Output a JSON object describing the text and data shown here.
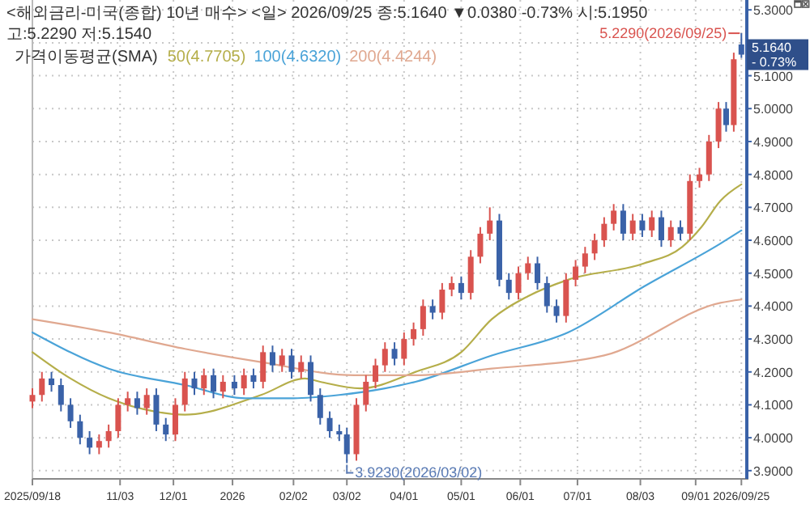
{
  "chart_data": {
    "type": "candlestick",
    "title": "<해외금리-미국(종합) 10년 매수> <일> 2026/09/25 종:5.1640 ▼0.0380 -0.73% 시:5.1950 고:5.2290 저:5.1540",
    "legend_title": "가격이동평균(SMA)",
    "legend": "top left",
    "grid": true,
    "x": [
      "2025-09-18",
      "2025-09-23",
      "2025-09-28",
      "2025-10-03",
      "2025-10-08",
      "2025-10-13",
      "2025-10-18",
      "2025-10-23",
      "2025-10-28",
      "2025-11-02",
      "2025-11-07",
      "2025-11-12",
      "2025-11-17",
      "2025-11-22",
      "2025-11-27",
      "2025-12-02",
      "2025-12-07",
      "2025-12-12",
      "2025-12-17",
      "2025-12-22",
      "2025-12-27",
      "2026-01-02",
      "2026-01-07",
      "2026-01-12",
      "2026-01-17",
      "2026-01-22",
      "2026-01-27",
      "2026-02-01",
      "2026-02-06",
      "2026-02-11",
      "2026-02-16",
      "2026-02-21",
      "2026-02-26",
      "2026-03-02",
      "2026-03-07",
      "2026-03-12",
      "2026-03-17",
      "2026-03-22",
      "2026-03-27",
      "2026-04-01",
      "2026-04-06",
      "2026-04-11",
      "2026-04-16",
      "2026-04-21",
      "2026-04-26",
      "2026-05-01",
      "2026-05-06",
      "2026-05-11",
      "2026-05-16",
      "2026-05-21",
      "2026-05-26",
      "2026-05-31",
      "2026-06-05",
      "2026-06-10",
      "2026-06-15",
      "2026-06-20",
      "2026-06-25",
      "2026-06-30",
      "2026-07-05",
      "2026-07-10",
      "2026-07-15",
      "2026-07-20",
      "2026-07-25",
      "2026-07-30",
      "2026-08-04",
      "2026-08-09",
      "2026-08-14",
      "2026-08-19",
      "2026-08-24",
      "2026-08-29",
      "2026-09-03",
      "2026-09-08",
      "2026-09-13",
      "2026-09-17",
      "2026-09-21",
      "2026-09-25"
    ],
    "ohlc": [
      [
        4.11,
        4.15,
        4.09,
        4.13
      ],
      [
        4.13,
        4.2,
        4.11,
        4.18
      ],
      [
        4.18,
        4.2,
        4.14,
        4.16
      ],
      [
        4.16,
        4.18,
        4.08,
        4.1
      ],
      [
        4.1,
        4.12,
        4.03,
        4.05
      ],
      [
        4.05,
        4.07,
        3.98,
        4.0
      ],
      [
        4.0,
        4.02,
        3.95,
        3.97
      ],
      [
        3.97,
        4.01,
        3.95,
        3.99
      ],
      [
        3.99,
        4.04,
        3.97,
        4.02
      ],
      [
        4.02,
        4.12,
        4.0,
        4.1
      ],
      [
        4.1,
        4.14,
        4.08,
        4.12
      ],
      [
        4.12,
        4.14,
        4.07,
        4.09
      ],
      [
        4.09,
        4.15,
        4.07,
        4.13
      ],
      [
        4.13,
        4.15,
        4.02,
        4.04
      ],
      [
        4.04,
        4.06,
        3.99,
        4.01
      ],
      [
        4.01,
        4.12,
        3.99,
        4.1
      ],
      [
        4.1,
        4.2,
        4.08,
        4.18
      ],
      [
        4.18,
        4.2,
        4.13,
        4.15
      ],
      [
        4.15,
        4.21,
        4.13,
        4.19
      ],
      [
        4.19,
        4.21,
        4.12,
        4.14
      ],
      [
        4.14,
        4.19,
        4.12,
        4.17
      ],
      [
        4.17,
        4.19,
        4.13,
        4.15
      ],
      [
        4.15,
        4.21,
        4.13,
        4.19
      ],
      [
        4.19,
        4.21,
        4.15,
        4.17
      ],
      [
        4.17,
        4.28,
        4.15,
        4.26
      ],
      [
        4.26,
        4.28,
        4.2,
        4.22
      ],
      [
        4.22,
        4.27,
        4.2,
        4.25
      ],
      [
        4.25,
        4.27,
        4.18,
        4.2
      ],
      [
        4.2,
        4.25,
        4.18,
        4.23
      ],
      [
        4.23,
        4.25,
        4.11,
        4.13
      ],
      [
        4.13,
        4.15,
        4.04,
        4.06
      ],
      [
        4.06,
        4.08,
        4.0,
        4.02
      ],
      [
        4.02,
        4.04,
        3.99,
        4.01
      ],
      [
        4.01,
        4.03,
        3.923,
        3.95
      ],
      [
        3.95,
        4.12,
        3.93,
        4.1
      ],
      [
        4.1,
        4.19,
        4.08,
        4.17
      ],
      [
        4.17,
        4.24,
        4.15,
        4.22
      ],
      [
        4.22,
        4.29,
        4.2,
        4.27
      ],
      [
        4.27,
        4.29,
        4.22,
        4.24
      ],
      [
        4.24,
        4.32,
        4.22,
        4.3
      ],
      [
        4.3,
        4.35,
        4.28,
        4.33
      ],
      [
        4.33,
        4.42,
        4.31,
        4.4
      ],
      [
        4.4,
        4.42,
        4.36,
        4.38
      ],
      [
        4.38,
        4.47,
        4.36,
        4.45
      ],
      [
        4.45,
        4.49,
        4.43,
        4.47
      ],
      [
        4.47,
        4.49,
        4.42,
        4.44
      ],
      [
        4.44,
        4.57,
        4.42,
        4.55
      ],
      [
        4.55,
        4.64,
        4.53,
        4.62
      ],
      [
        4.62,
        4.7,
        4.6,
        4.66
      ],
      [
        4.66,
        4.68,
        4.46,
        4.48
      ],
      [
        4.48,
        4.5,
        4.42,
        4.44
      ],
      [
        4.44,
        4.52,
        4.42,
        4.5
      ],
      [
        4.5,
        4.55,
        4.48,
        4.53
      ],
      [
        4.53,
        4.55,
        4.45,
        4.47
      ],
      [
        4.47,
        4.49,
        4.38,
        4.4
      ],
      [
        4.4,
        4.42,
        4.35,
        4.37
      ],
      [
        4.37,
        4.5,
        4.35,
        4.48
      ],
      [
        4.48,
        4.54,
        4.46,
        4.52
      ],
      [
        4.52,
        4.58,
        4.5,
        4.56
      ],
      [
        4.56,
        4.62,
        4.54,
        4.6
      ],
      [
        4.6,
        4.67,
        4.58,
        4.65
      ],
      [
        4.65,
        4.71,
        4.63,
        4.69
      ],
      [
        4.69,
        4.71,
        4.6,
        4.62
      ],
      [
        4.62,
        4.68,
        4.6,
        4.66
      ],
      [
        4.66,
        4.68,
        4.61,
        4.63
      ],
      [
        4.63,
        4.69,
        4.61,
        4.67
      ],
      [
        4.67,
        4.69,
        4.58,
        4.6
      ],
      [
        4.6,
        4.66,
        4.58,
        4.64
      ],
      [
        4.64,
        4.66,
        4.6,
        4.62
      ],
      [
        4.62,
        4.8,
        4.6,
        4.78
      ],
      [
        4.78,
        4.82,
        4.76,
        4.8
      ],
      [
        4.8,
        4.92,
        4.78,
        4.9
      ],
      [
        4.9,
        5.02,
        4.88,
        5.0
      ],
      [
        5.0,
        5.02,
        4.93,
        4.95
      ],
      [
        4.95,
        5.17,
        4.93,
        5.15
      ],
      [
        5.195,
        5.229,
        5.154,
        5.164
      ]
    ],
    "series": [
      {
        "name": "50(4.7705)",
        "type": "line",
        "color": "#b5ae4a",
        "x": [
          "2025-09-18",
          "2025-10-08",
          "2025-10-28",
          "2025-11-21",
          "2025-12-07",
          "2026-01-16",
          "2026-02-08",
          "2026-02-16",
          "2026-03-09",
          "2026-04-07",
          "2026-05-01",
          "2026-05-17",
          "2026-06-05",
          "2026-06-26",
          "2026-08-05",
          "2026-08-25",
          "2026-09-04",
          "2026-09-14",
          "2026-09-25"
        ],
        "values": [
          4.26,
          4.18,
          4.12,
          4.08,
          4.07,
          4.13,
          4.18,
          4.17,
          4.15,
          4.2,
          4.26,
          4.36,
          4.43,
          4.48,
          4.53,
          4.58,
          4.64,
          4.72,
          4.77
        ]
      },
      {
        "name": "100(4.6320)",
        "type": "line",
        "color": "#4aa3d8",
        "x": [
          "2025-09-18",
          "2025-10-28",
          "2025-12-07",
          "2026-01-08",
          "2026-02-02",
          "2026-02-26",
          "2026-03-22",
          "2026-04-07",
          "2026-05-17",
          "2026-06-26",
          "2026-08-05",
          "2026-09-14",
          "2026-09-25"
        ],
        "values": [
          4.32,
          4.21,
          4.16,
          4.12,
          4.12,
          4.13,
          4.15,
          4.17,
          4.25,
          4.32,
          4.46,
          4.59,
          4.63
        ]
      },
      {
        "name": "200(4.4244)",
        "type": "line",
        "color": "#e0a890",
        "x": [
          "2025-09-18",
          "2025-10-28",
          "2025-12-07",
          "2026-01-16",
          "2026-03-06",
          "2026-04-07",
          "2026-05-17",
          "2026-07-15",
          "2026-09-14",
          "2026-09-25"
        ],
        "values": [
          4.36,
          4.32,
          4.27,
          4.23,
          4.19,
          4.19,
          4.21,
          4.25,
          4.41,
          4.42
        ]
      }
    ],
    "xlim": [
      "2025-09-18",
      "2026-09-27"
    ],
    "xticks": [
      {
        "value": "2025-09-18",
        "label": "2025/09/18"
      },
      {
        "value": "2025-11-03",
        "label": "11/03"
      },
      {
        "value": "2025-12-01",
        "label": "12/01"
      },
      {
        "value": "2026-01-01",
        "label": "2026"
      },
      {
        "value": "2026-02-02",
        "label": "02/02"
      },
      {
        "value": "2026-03-02",
        "label": "03/02"
      },
      {
        "value": "2026-04-01",
        "label": "04/01"
      },
      {
        "value": "2026-05-01",
        "label": "05/01"
      },
      {
        "value": "2026-06-01",
        "label": "06/01"
      },
      {
        "value": "2026-07-01",
        "label": "07/01"
      },
      {
        "value": "2026-08-03",
        "label": "08/03"
      },
      {
        "value": "2026-09-01",
        "label": "09/01"
      },
      {
        "value": "2026-09-25",
        "label": "2026/09/25"
      }
    ],
    "ylim": [
      3.875,
      5.33
    ],
    "yticks": [
      {
        "value": 3.9,
        "label": "3.9000"
      },
      {
        "value": 4.0,
        "label": "4.0000"
      },
      {
        "value": 4.1,
        "label": "4.1000"
      },
      {
        "value": 4.2,
        "label": "4.2000"
      },
      {
        "value": 4.3,
        "label": "4.3000"
      },
      {
        "value": 4.4,
        "label": "4.4000"
      },
      {
        "value": 4.5,
        "label": "4.5000"
      },
      {
        "value": 4.6,
        "label": "4.6000"
      },
      {
        "value": 4.7,
        "label": "4.7000"
      },
      {
        "value": 4.8,
        "label": "4.8000"
      },
      {
        "value": 4.9,
        "label": "4.9000"
      },
      {
        "value": 5.0,
        "label": "5.0000"
      },
      {
        "value": 5.1,
        "label": "5.1000"
      },
      {
        "value": 5.2,
        "label": null
      },
      {
        "value": 5.3,
        "label": "5.3000"
      }
    ],
    "annotations": [
      {
        "text": "5.2290(2026/09/25)",
        "x": "2026-09-25",
        "y": 5.229
      },
      {
        "text": "3.9230(2026/03/02)",
        "x": "2026-03-02",
        "y": 3.923
      },
      {
        "text": "5.1640 - 0.73%",
        "x": "2026-09-25",
        "y": 5.164
      }
    ]
  }
}
